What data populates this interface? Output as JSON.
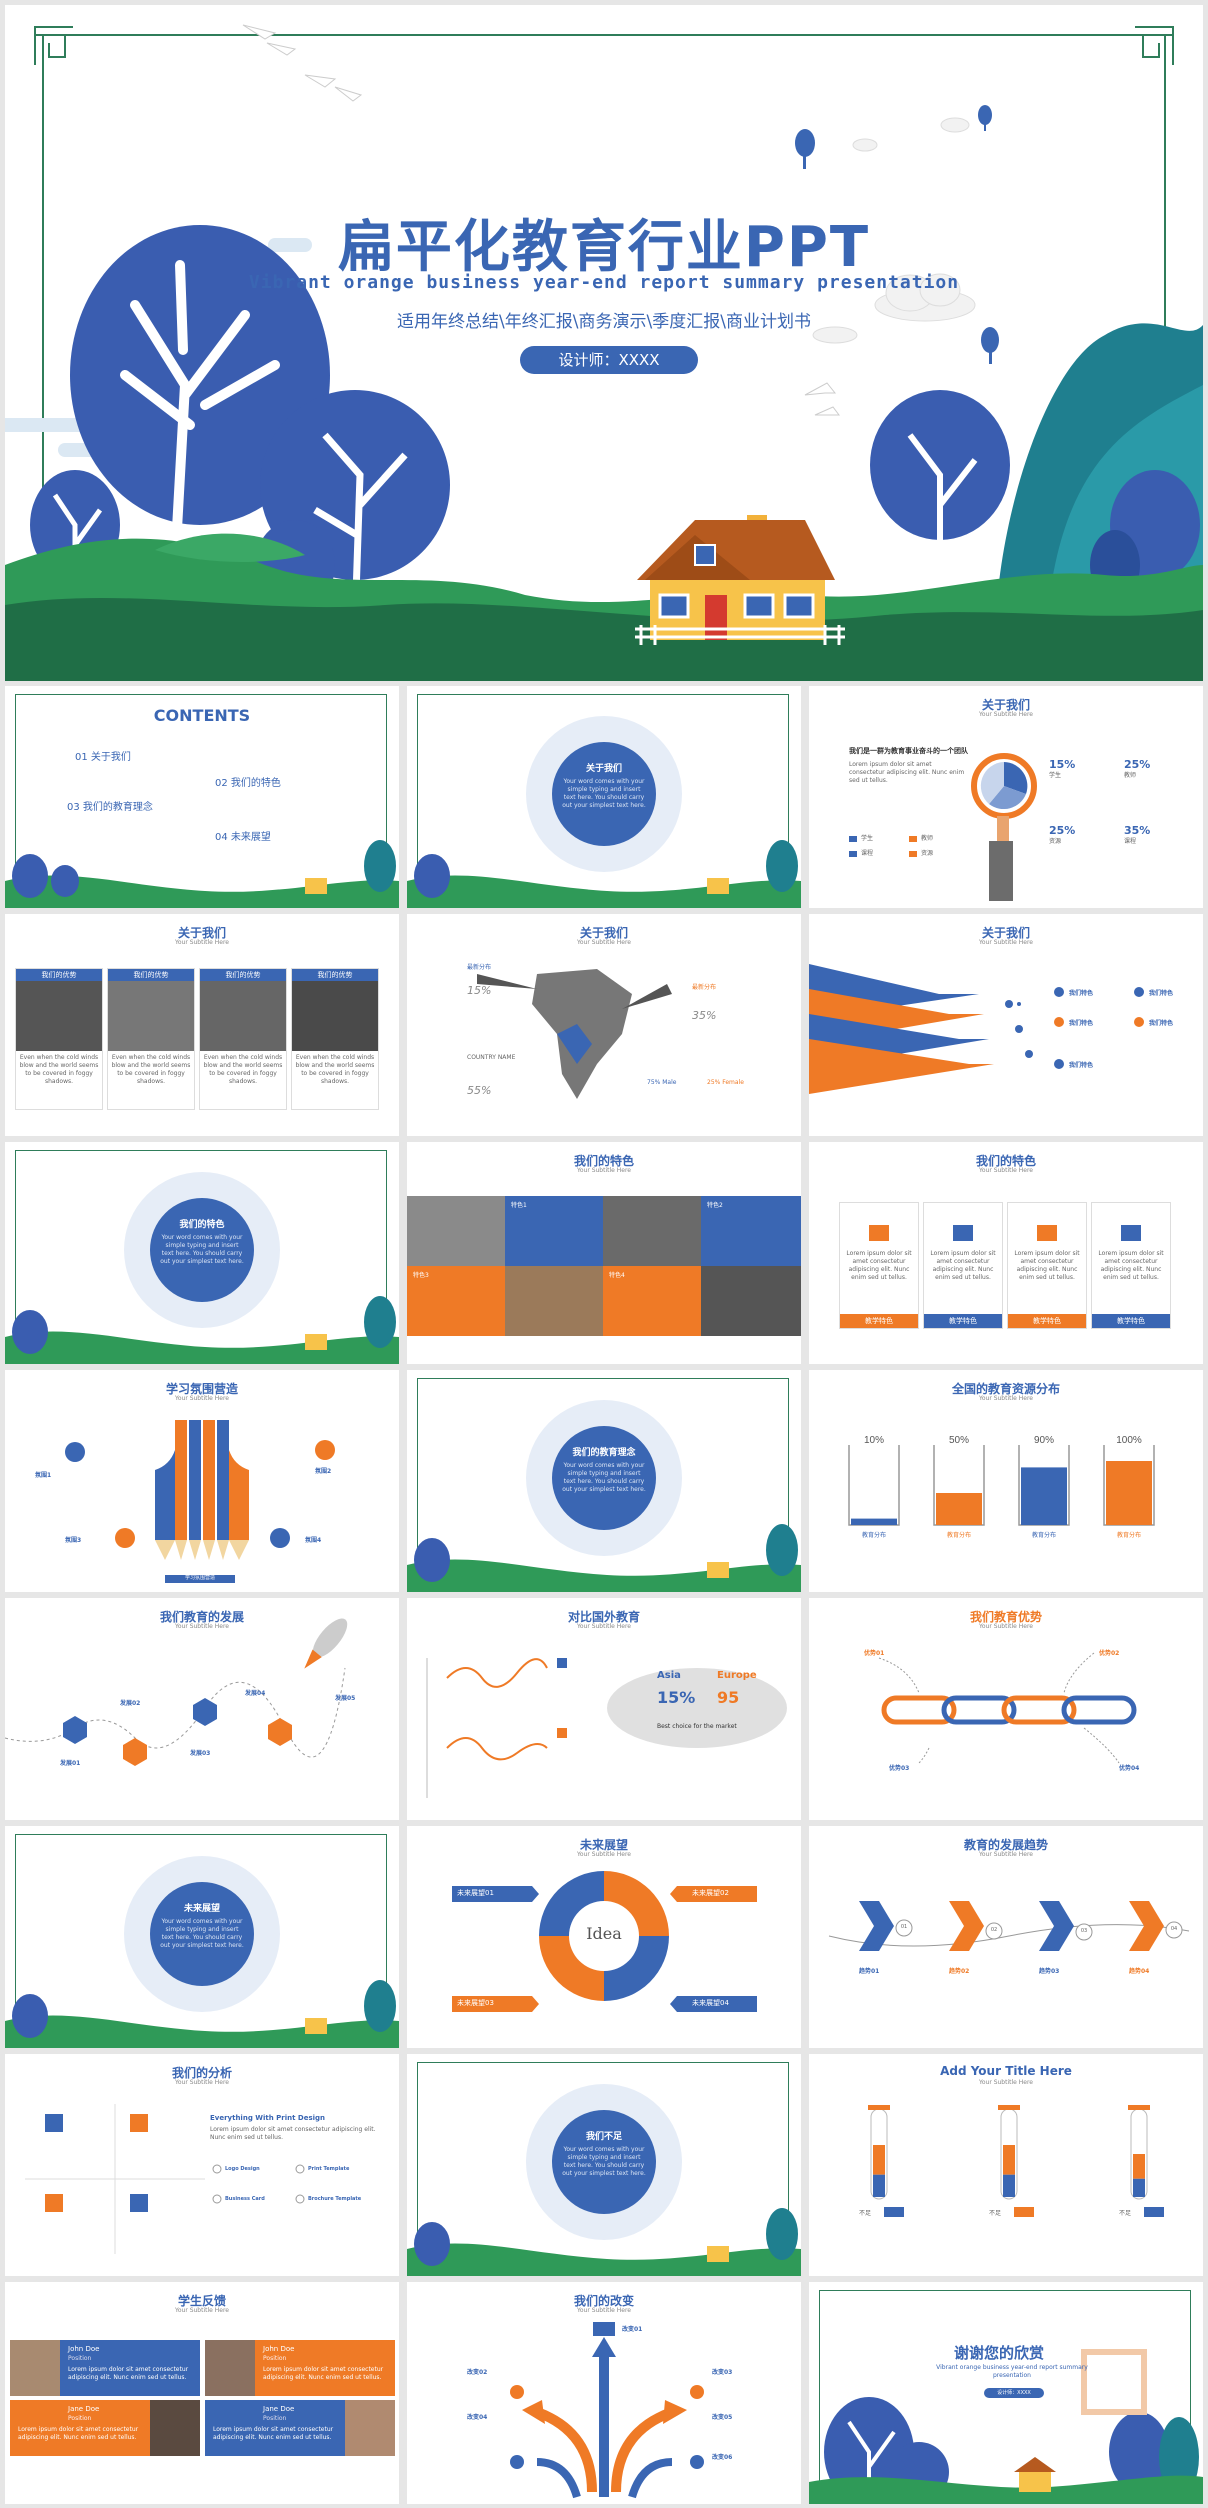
{
  "hero": {
    "title_cn": "扁平化教育行业PPT",
    "title_en": "Vibrant orange business year-end report summary presentation",
    "subtitle": "适用年终总结\\年终汇报\\商务演示\\季度汇报\\商业计划书",
    "designer": "设计师：XXXX"
  },
  "common": {
    "subtitle_here": "Your Subtitle Here",
    "lorem": "Lorem ipsum dolor sit amet consectetur adipiscing elit. Nunc enim sed ut tellus.",
    "circle_text": "Your word comes with your simple typing and insert text here. You should carry out your simplest text here."
  },
  "slide_contents": {
    "title": "CONTENTS",
    "items": [
      {
        "num": "01",
        "label": "关于我们"
      },
      {
        "num": "02",
        "label": "我们的特色"
      },
      {
        "num": "03",
        "label": "我们的教育理念"
      },
      {
        "num": "04",
        "label": "未来展望"
      }
    ]
  },
  "section_titles": {
    "s1": "关于我们",
    "s2": "我们的特色",
    "s3": "我们的教育理念",
    "s4": "未来展望",
    "s5": "我们不足"
  },
  "slide_about_pie": {
    "title": "关于我们",
    "heading": "我们是一群为教育事业奋斗的一个团队",
    "stats": [
      {
        "value": "15%",
        "label": "学生"
      },
      {
        "value": "25%",
        "label": "教师"
      },
      {
        "value": "25%",
        "label": "资源"
      },
      {
        "value": "35%",
        "label": "课程"
      }
    ],
    "legend": [
      "学生",
      "教师",
      "课程",
      "资源"
    ]
  },
  "slide_about_photos": {
    "title": "关于我们",
    "cards": [
      "我们的优势",
      "我们的优势",
      "我们的优势",
      "我们的优势"
    ],
    "card_text": "Even when the cold winds blow and the world seems to be covered in foggy shadows."
  },
  "slide_about_map": {
    "title": "关于我们",
    "left_labels": [
      "最新分布",
      "COUNTRY NAME"
    ],
    "percents": [
      "15%",
      "35%",
      "55%"
    ],
    "right_label": "最新分布",
    "legend": [
      "75% Male",
      "25% Female"
    ]
  },
  "slide_about_pyramid": {
    "title": "关于我们",
    "items": [
      "我们特色",
      "我们特色",
      "我们特色",
      "我们特色",
      "我们特色"
    ]
  },
  "slide_feature_photos": {
    "title": "我们的特色",
    "labels": [
      "特色1",
      "特色2",
      "特色3",
      "特色4"
    ]
  },
  "slide_feature_icons": {
    "title": "我们的特色",
    "buttons": [
      "教学特色",
      "教学特色",
      "教学特色",
      "教学特色"
    ]
  },
  "slide_pencils": {
    "title": "学习氛围营造",
    "labels": [
      "氛围1",
      "氛围2",
      "氛围3",
      "氛围4"
    ],
    "bottom": "学习氛围营造"
  },
  "slide_beakers": {
    "title": "全国的教育资源分布",
    "values": [
      10,
      50,
      90,
      100
    ],
    "labels": [
      "教育分布",
      "教育分布",
      "教育分布",
      "教育分布"
    ]
  },
  "slide_development": {
    "title": "我们教育的发展",
    "labels": [
      "发展01",
      "发展02",
      "发展03",
      "发展04",
      "发展05"
    ]
  },
  "slide_compare": {
    "title": "对比国外教育",
    "asia": "Asia",
    "europe": "Europe",
    "asia_pct": "15%",
    "europe_pct": "95",
    "note": "Best choice for the market"
  },
  "slide_advantage": {
    "title": "我们教育优势",
    "labels": [
      "优势01",
      "优势02",
      "优势03",
      "优势04"
    ]
  },
  "slide_future": {
    "title": "未来展望",
    "center": "Idea",
    "labels": [
      "未来展望01",
      "未来展望02",
      "未来展望03",
      "未来展望04"
    ]
  },
  "slide_trend": {
    "title": "教育的发展趋势",
    "labels": [
      "趋势01",
      "趋势02",
      "趋势03",
      "趋势04"
    ],
    "numbers": [
      "01",
      "02",
      "03",
      "04"
    ]
  },
  "slide_analysis": {
    "title": "我们的分析",
    "heading": "Everything With Print Design",
    "items": [
      "Logo Design",
      "Print Template",
      "Business Card",
      "Brochure Template"
    ]
  },
  "slide_tubes": {
    "title": "Add Your Title Here",
    "label": "不足",
    "values": [
      60,
      60,
      50
    ]
  },
  "slide_feedback": {
    "title": "学生反馈",
    "names": [
      "John Doe",
      "John Doe",
      "Jane Doe",
      "Jane Doe"
    ],
    "role": "Position"
  },
  "slide_change": {
    "title": "我们的改变",
    "labels": [
      "改变01",
      "改变02",
      "改变03",
      "改变04",
      "改变05",
      "改变06"
    ]
  },
  "slide_thanks": {
    "title": "谢谢您的欣赏",
    "en": "Vibrant orange business year-end report summary presentation",
    "pill": "设计师：XXXX"
  },
  "colors": {
    "blue": "#3a66b3",
    "orange": "#ef7a26",
    "green": "#2f9a58",
    "dark_green": "#1f6e46"
  }
}
